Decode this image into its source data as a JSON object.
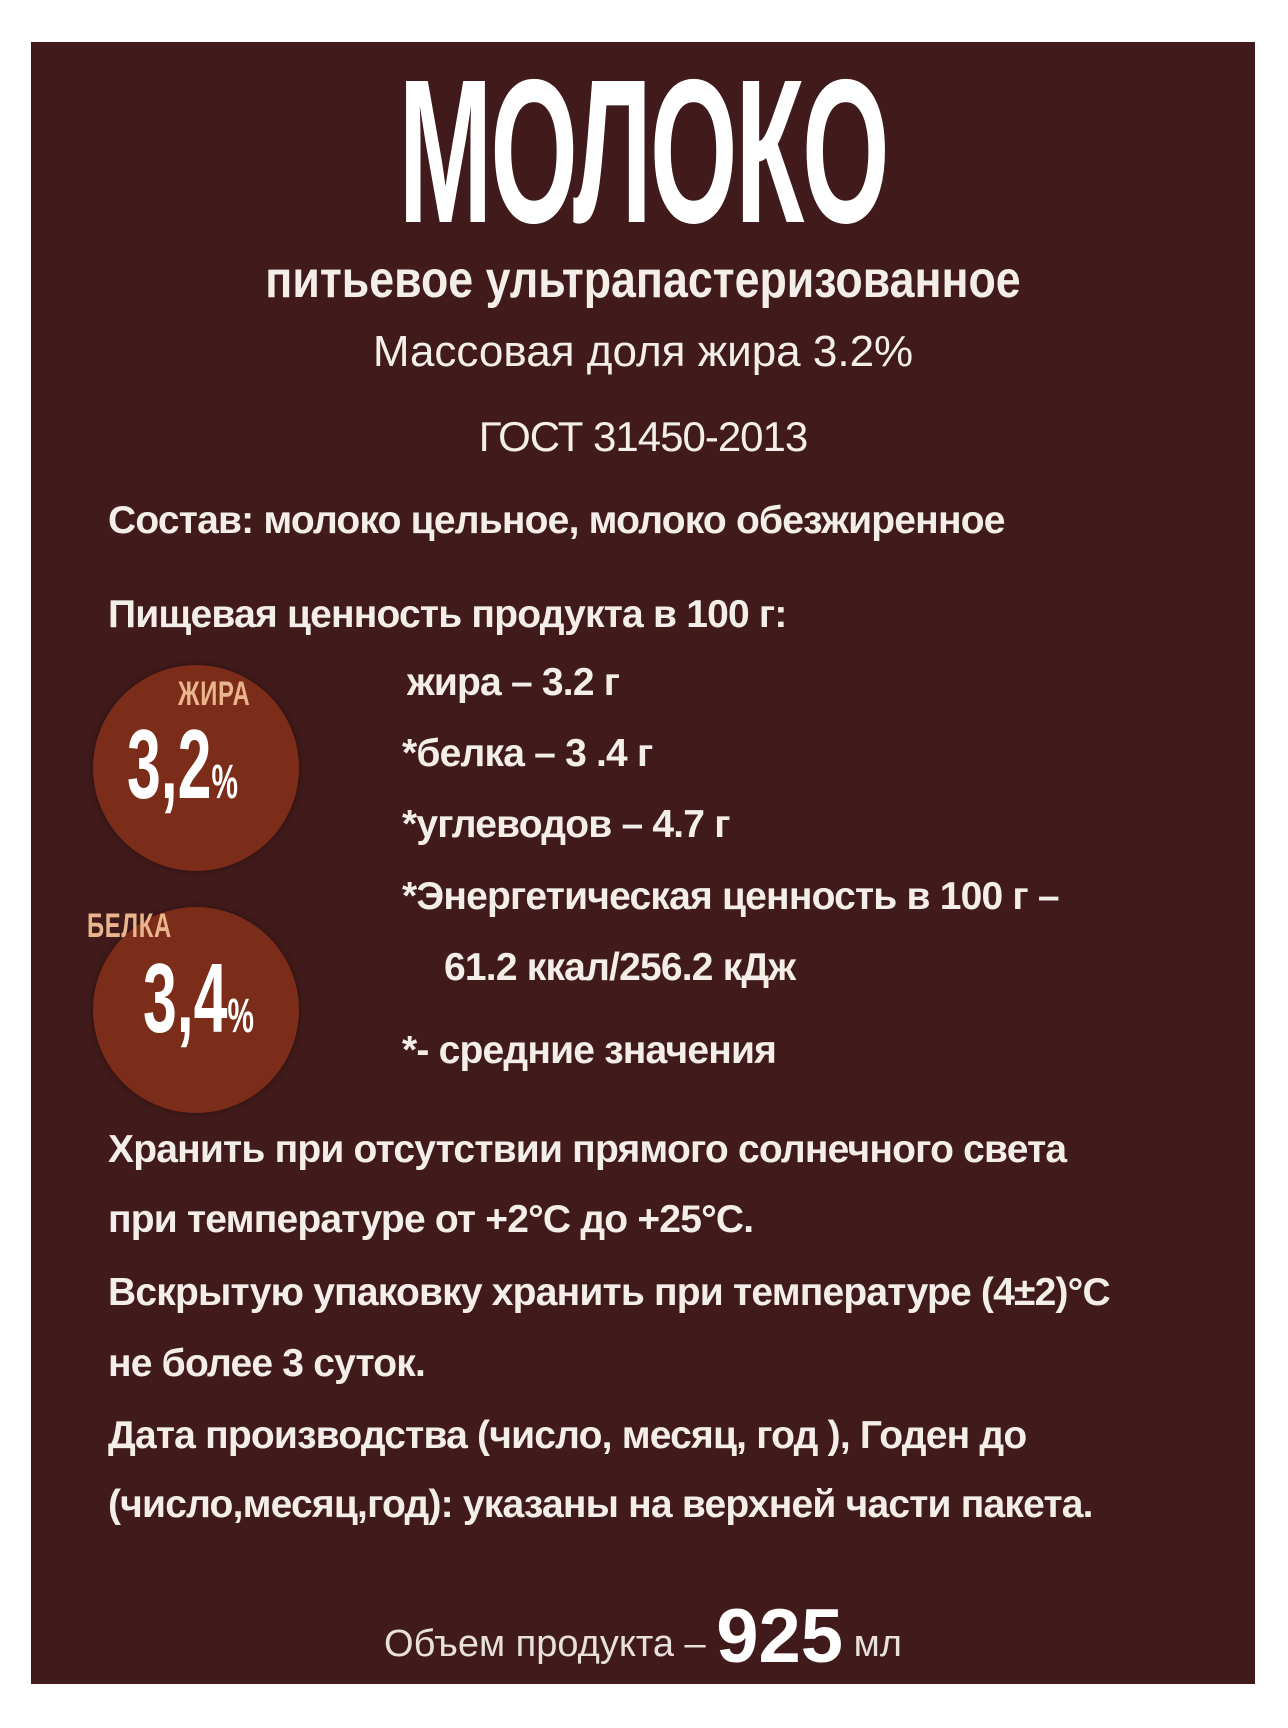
{
  "title": "МОЛОКО",
  "subtitle": "питьевое ультрапастеризованное",
  "fat_fraction": "Массовая доля жира 3.2%",
  "standard": "ГОСТ 31450-2013",
  "composition": "Состав: молоко цельное, молоко обезжиренное",
  "nutrition_heading": "Пищевая ценность продукта в 100 г:",
  "nutrition": [
    "жира – 3.2 г",
    "*белка – 3 .4 г",
    "*углеводов – 4.7 г",
    "*Энергетическая ценность в 100 г –",
    "61.2 ккал/256.2 кДж",
    "*- средние значения"
  ],
  "badges": [
    {
      "label": "ЖИРА",
      "value": "3,2",
      "unit": "%"
    },
    {
      "label": "БЕЛКА",
      "value": "3,4",
      "unit": "%"
    }
  ],
  "storage": [
    "Хранить при отсутствии прямого солнечного света",
    "при температуре от +2°С до +25°С.",
    "Вскрытую упаковку хранить при температуре (4±2)°С",
    "не более 3 суток.",
    "Дата производства (число, месяц, год ), Годен до",
    "(число,месяц,год): указаны на  верхней части пакета."
  ],
  "volume": {
    "prefix": "Объем продукта –",
    "value": "925",
    "unit": "мл"
  },
  "colors": {
    "background": "#411b1b",
    "badge": "#7b2d19",
    "badge_label": "#eab48c",
    "text": "#ffffff"
  }
}
